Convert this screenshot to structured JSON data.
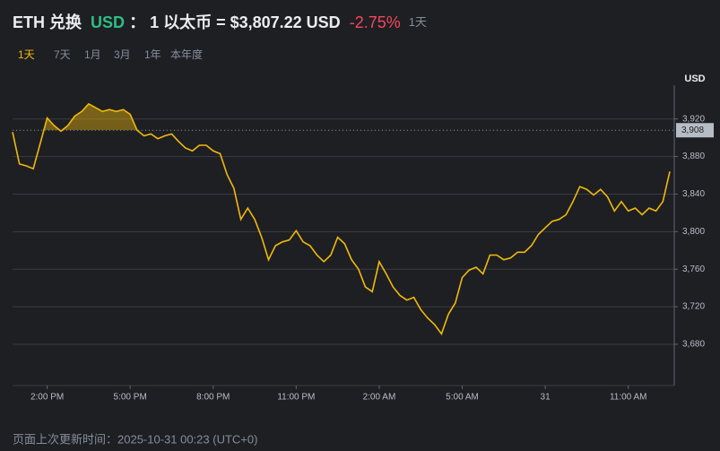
{
  "header": {
    "pair": "ETH 兑换",
    "quote": "USD",
    "colon": "：",
    "rate": "1 以太币 = $3,807.22 USD",
    "change": "-2.75%",
    "period": "1天"
  },
  "tabs": [
    "1天",
    "7天",
    "1月",
    "3月",
    "1年",
    "本年度"
  ],
  "footer": "页面上次更新时间：2025-10-31 00:23 (UTC+0)",
  "chart_data": {
    "type": "line",
    "y_label": "USD",
    "categories": [
      null,
      null,
      null,
      null,
      null,
      "2:00 PM",
      null,
      null,
      null,
      null,
      null,
      null,
      null,
      null,
      null,
      null,
      null,
      "5:00 PM",
      null,
      null,
      null,
      null,
      null,
      null,
      null,
      null,
      null,
      null,
      null,
      "8:00 PM",
      null,
      null,
      null,
      null,
      null,
      null,
      null,
      null,
      null,
      null,
      null,
      "11:00 PM",
      null,
      null,
      null,
      null,
      null,
      null,
      null,
      null,
      null,
      null,
      null,
      "2:00 AM",
      null,
      null,
      null,
      null,
      null,
      null,
      null,
      null,
      null,
      null,
      null,
      "5:00 AM",
      null,
      null,
      null,
      null,
      null,
      null,
      null,
      null,
      null,
      null,
      null,
      "31",
      null,
      null,
      null,
      null,
      null,
      null,
      null,
      null,
      null,
      null,
      null,
      "11:00 AM",
      null,
      null,
      null,
      null,
      null,
      null
    ],
    "series": [
      {
        "name": "ETH",
        "color": "#f0b90b",
        "values": [
          3906,
          3872,
          3870,
          3867,
          3894,
          3921,
          3913,
          3907,
          3913,
          3923,
          3928,
          3936,
          3932,
          3928,
          3930,
          3928,
          3930,
          3925,
          3908,
          3902,
          3904,
          3899,
          3902,
          3904,
          3896,
          3889,
          3886,
          3892,
          3892,
          3886,
          3883,
          3861,
          3846,
          3813,
          3825,
          3813,
          3794,
          3770,
          3785,
          3789,
          3791,
          3801,
          3789,
          3785,
          3775,
          3768,
          3775,
          3794,
          3787,
          3770,
          3760,
          3741,
          3736,
          3768,
          3755,
          3741,
          3732,
          3727,
          3730,
          3717,
          3708,
          3701,
          3691,
          3712,
          3724,
          3751,
          3759,
          3762,
          3755,
          3775,
          3775,
          3770,
          3772,
          3778,
          3778,
          3785,
          3797,
          3804,
          3811,
          3813,
          3818,
          3832,
          3848,
          3845,
          3839,
          3845,
          3837,
          3822,
          3832,
          3822,
          3825,
          3818,
          3825,
          3822,
          3832,
          3864
        ]
      }
    ],
    "ylim": [
      3636,
      3956
    ],
    "yticks": [
      {
        "value": 3680,
        "label": "3,680"
      },
      {
        "value": 3720,
        "label": "3,720"
      },
      {
        "value": 3760,
        "label": "3,760"
      },
      {
        "value": 3800,
        "label": "3,800"
      },
      {
        "value": 3840,
        "label": "3,840"
      },
      {
        "value": 3880,
        "label": "3,880"
      },
      {
        "value": 3920,
        "label": "3,920"
      }
    ],
    "reference_line": {
      "value": 3908,
      "label": "3,908"
    },
    "grid": true
  }
}
